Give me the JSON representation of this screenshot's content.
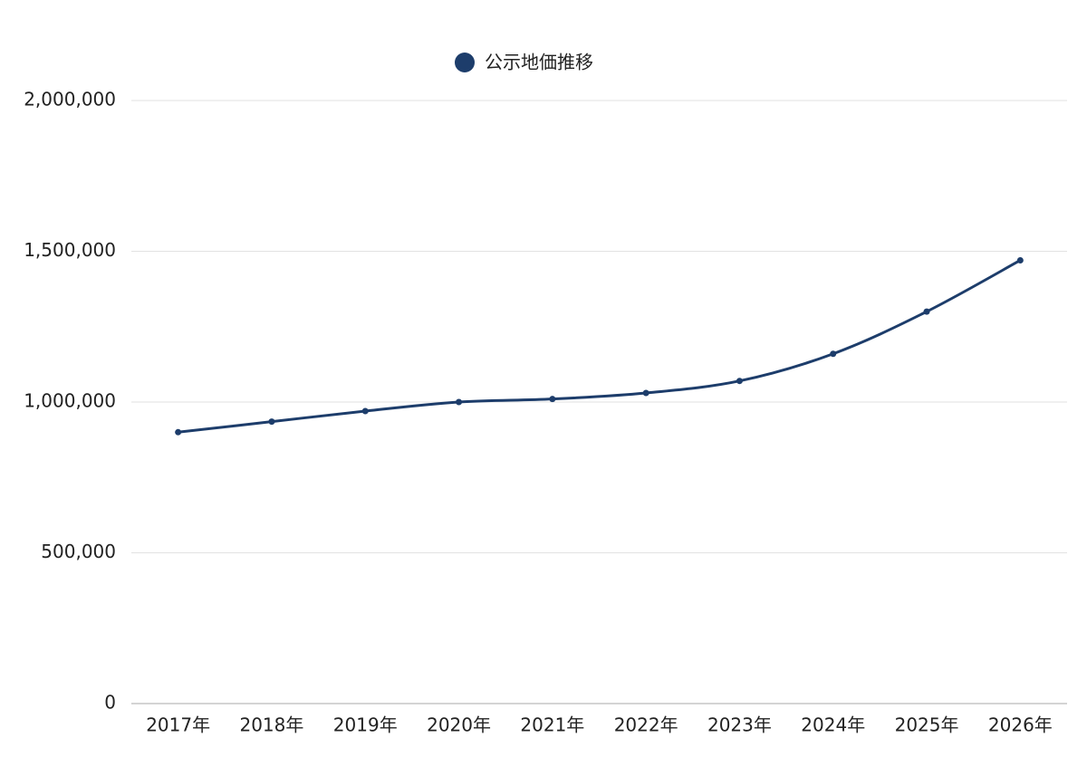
{
  "chart_data": {
    "type": "line",
    "categories": [
      "2017年",
      "2018年",
      "2019年",
      "2020年",
      "2021年",
      "2022年",
      "2023年",
      "2024年",
      "2025年",
      "2026年"
    ],
    "series": [
      {
        "name": "公示地価推移",
        "color": "#1d3d6b",
        "values": [
          900000,
          935000,
          970000,
          1000000,
          1010000,
          1030000,
          1070000,
          1160000,
          1300000,
          1470000
        ]
      }
    ],
    "ylim": [
      0,
      2000000
    ],
    "yticks": [
      0,
      {
        "value": 500000,
        "label": "500,000"
      },
      {
        "value": 1000000,
        "label": "1,000,000"
      },
      {
        "value": 1500000,
        "label": "1,500,000"
      },
      {
        "value": 2000000,
        "label": "2,000,000"
      }
    ],
    "grid": true,
    "legend": "top"
  }
}
